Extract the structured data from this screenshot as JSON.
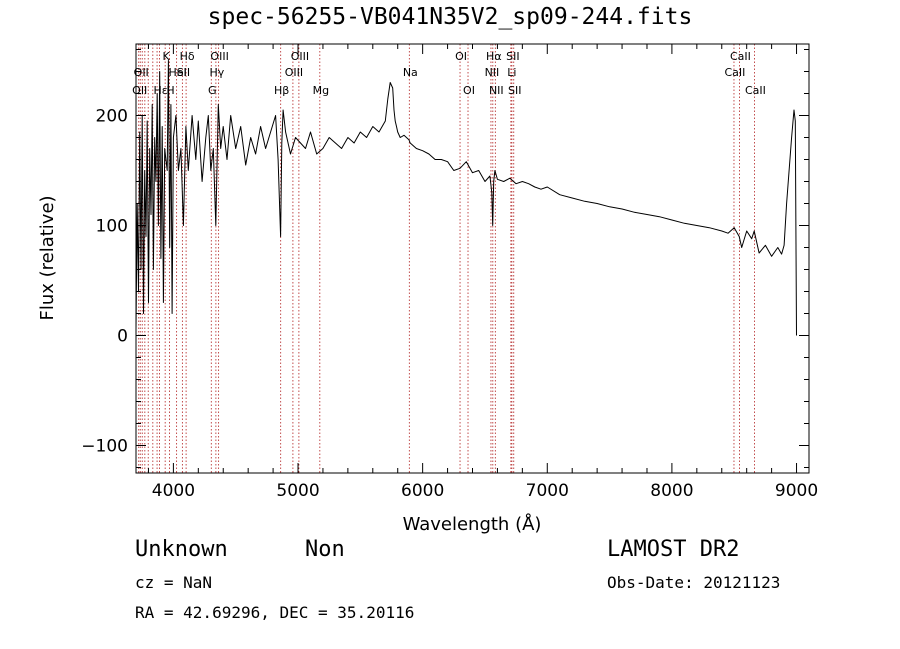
{
  "chart_data": {
    "type": "line",
    "title": "spec-56255-VB041N35V2_sp09-244.fits",
    "xlabel": "Wavelength (Å)",
    "ylabel": "Flux (relative)",
    "xlim": [
      3700,
      9100
    ],
    "ylim": [
      -125,
      265
    ],
    "xticks": [
      4000,
      5000,
      6000,
      7000,
      8000,
      9000
    ],
    "yticks": [
      -100,
      0,
      100,
      200
    ],
    "grid": false,
    "line_color": "#000000",
    "marker_color": "#b22222",
    "series": [
      {
        "x": [
          3700,
          3710,
          3720,
          3730,
          3740,
          3750,
          3760,
          3770,
          3780,
          3790,
          3800,
          3810,
          3820,
          3830,
          3840,
          3850,
          3860,
          3870,
          3880,
          3890,
          3900,
          3910,
          3920,
          3930,
          3940,
          3950,
          3960,
          3970,
          3980,
          3990,
          4000,
          4020,
          4040,
          4060,
          4080,
          4100,
          4120,
          4150,
          4180,
          4200,
          4230,
          4260,
          4280,
          4300,
          4320,
          4340,
          4360,
          4380,
          4400,
          4430,
          4460,
          4500,
          4540,
          4580,
          4620,
          4660,
          4700,
          4740,
          4780,
          4820,
          4840,
          4860,
          4870,
          4880,
          4900,
          4940,
          4980,
          5020,
          5060,
          5100,
          5150,
          5200,
          5250,
          5300,
          5350,
          5400,
          5450,
          5500,
          5550,
          5600,
          5650,
          5700,
          5720,
          5740,
          5760,
          5770,
          5780,
          5790,
          5800,
          5820,
          5850,
          5890,
          5900,
          5950,
          6000,
          6050,
          6100,
          6150,
          6200,
          6250,
          6300,
          6350,
          6400,
          6450,
          6500,
          6540,
          6555,
          6562,
          6570,
          6580,
          6600,
          6650,
          6700,
          6750,
          6800,
          6850,
          6900,
          6950,
          7000,
          7100,
          7200,
          7300,
          7400,
          7500,
          7600,
          7700,
          7800,
          7900,
          8000,
          8100,
          8200,
          8300,
          8400,
          8450,
          8500,
          8540,
          8560,
          8600,
          8640,
          8660,
          8700,
          8750,
          8800,
          8850,
          8880,
          8900,
          8920,
          8940,
          8960,
          8980,
          8990,
          9000
        ],
        "y": [
          5,
          120,
          40,
          185,
          60,
          200,
          20,
          150,
          90,
          195,
          30,
          170,
          110,
          210,
          60,
          180,
          140,
          220,
          100,
          240,
          70,
          190,
          30,
          170,
          160,
          150,
          250,
          80,
          210,
          20,
          180,
          200,
          150,
          170,
          100,
          190,
          150,
          200,
          160,
          195,
          140,
          180,
          200,
          150,
          170,
          100,
          210,
          170,
          190,
          160,
          200,
          170,
          190,
          155,
          180,
          165,
          190,
          170,
          185,
          200,
          160,
          90,
          175,
          205,
          185,
          165,
          180,
          175,
          170,
          185,
          165,
          170,
          180,
          175,
          170,
          180,
          175,
          185,
          180,
          190,
          185,
          195,
          215,
          230,
          225,
          205,
          195,
          190,
          185,
          180,
          182,
          178,
          175,
          170,
          168,
          165,
          160,
          160,
          158,
          150,
          152,
          158,
          148,
          150,
          140,
          145,
          130,
          100,
          140,
          150,
          142,
          140,
          143,
          138,
          140,
          138,
          135,
          133,
          135,
          128,
          125,
          122,
          120,
          117,
          115,
          112,
          110,
          108,
          105,
          102,
          100,
          98,
          95,
          93,
          98,
          90,
          80,
          95,
          88,
          95,
          75,
          82,
          72,
          80,
          74,
          82,
          120,
          150,
          180,
          205,
          195,
          0
        ]
      }
    ],
    "lines": [
      {
        "wavelength": 3722,
        "label": "OII",
        "row": 2
      },
      {
        "wavelength": 3734,
        "label": "OII",
        "row": 1
      },
      {
        "wavelength": 3750,
        "label": "",
        "row": 0
      },
      {
        "wavelength": 3771,
        "label": "",
        "row": 0
      },
      {
        "wavelength": 3798,
        "label": "",
        "row": 0
      },
      {
        "wavelength": 3835,
        "label": "",
        "row": 0
      },
      {
        "wavelength": 3869,
        "label": "",
        "row": 0
      },
      {
        "wavelength": 3889,
        "label": "Hε",
        "row": 2
      },
      {
        "wavelength": 3934,
        "label": "K",
        "row": 0
      },
      {
        "wavelength": 3969,
        "label": "H",
        "row": 2
      },
      {
        "wavelength": 4026,
        "label": "HeI",
        "row": 1
      },
      {
        "wavelength": 4072,
        "label": "SII",
        "row": 1
      },
      {
        "wavelength": 4102,
        "label": "Hδ",
        "row": 0
      },
      {
        "wavelength": 4304,
        "label": "G",
        "row": 2
      },
      {
        "wavelength": 4341,
        "label": "Hγ",
        "row": 1
      },
      {
        "wavelength": 4363,
        "label": "OIII",
        "row": 0
      },
      {
        "wavelength": 4861,
        "label": "Hβ",
        "row": 2
      },
      {
        "wavelength": 4959,
        "label": "OIII",
        "row": 1
      },
      {
        "wavelength": 5007,
        "label": "OIII",
        "row": 0
      },
      {
        "wavelength": 5175,
        "label": "Mg",
        "row": 2
      },
      {
        "wavelength": 5893,
        "label": "Na",
        "row": 1
      },
      {
        "wavelength": 6300,
        "label": "OI",
        "row": 0
      },
      {
        "wavelength": 6364,
        "label": "OI",
        "row": 2
      },
      {
        "wavelength": 6548,
        "label": "NII",
        "row": 1
      },
      {
        "wavelength": 6563,
        "label": "Hα",
        "row": 0
      },
      {
        "wavelength": 6583,
        "label": "NII",
        "row": 2
      },
      {
        "wavelength": 6708,
        "label": "Li",
        "row": 1
      },
      {
        "wavelength": 6716,
        "label": "SII",
        "row": 0
      },
      {
        "wavelength": 6731,
        "label": "SII",
        "row": 2
      },
      {
        "wavelength": 8498,
        "label": "CaII",
        "row": 1
      },
      {
        "wavelength": 8542,
        "label": "CaII",
        "row": 0
      },
      {
        "wavelength": 8662,
        "label": "CaII",
        "row": 2
      }
    ]
  },
  "info": {
    "class": "Unknown",
    "subclass": "Non",
    "survey": "LAMOST DR2",
    "cz": "cz = NaN",
    "obs_date": "Obs-Date: 20121123",
    "radec": "RA =  42.69296, DEC =  35.20116"
  }
}
